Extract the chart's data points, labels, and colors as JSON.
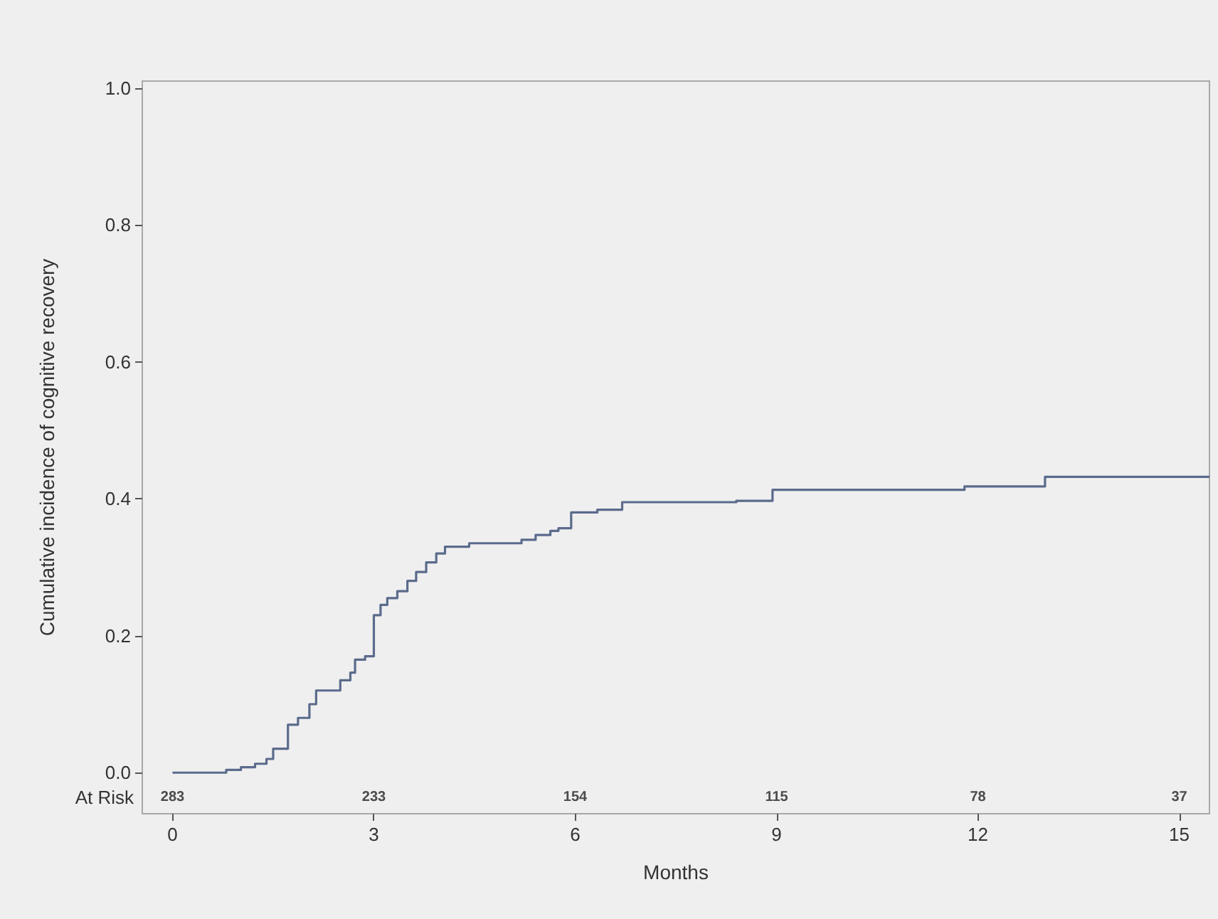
{
  "chart_data": {
    "type": "step",
    "xlabel": "Months",
    "ylabel": "Cumulative incidence of cognitive recovery",
    "xlim": [
      -0.45,
      15.45
    ],
    "xticks": [
      0,
      3,
      6,
      9,
      12,
      15
    ],
    "ylim": [
      -0.06,
      1.01
    ],
    "yticks": [
      {
        "value": 0,
        "label": "0.0"
      },
      {
        "value": 0.2,
        "label": "0.2"
      },
      {
        "value": 0.4,
        "label": "0.4"
      },
      {
        "value": 0.6,
        "label": "0.6"
      },
      {
        "value": 0.8,
        "label": "0.8"
      },
      {
        "value": 1,
        "label": "1.0"
      }
    ],
    "series": [
      {
        "color": "#5b6b8c",
        "x": [
          0,
          0.8,
          1.02,
          1.23,
          1.4,
          1.5,
          1.72,
          1.87,
          2.04,
          2.14,
          2.5,
          2.65,
          2.72,
          2.87,
          3.0,
          3.1,
          3.2,
          3.35,
          3.5,
          3.63,
          3.78,
          3.93,
          4.06,
          4.42,
          5.2,
          5.41,
          5.63,
          5.75,
          5.94,
          6.33,
          6.7,
          8.4,
          8.94,
          11.8,
          13.0,
          15.45
        ],
        "values": [
          0,
          0.004,
          0.008,
          0.013,
          0.02,
          0.035,
          0.07,
          0.08,
          0.1,
          0.12,
          0.135,
          0.146,
          0.165,
          0.17,
          0.23,
          0.245,
          0.255,
          0.265,
          0.28,
          0.293,
          0.307,
          0.32,
          0.33,
          0.335,
          0.34,
          0.347,
          0.353,
          0.357,
          0.38,
          0.384,
          0.395,
          0.397,
          0.413,
          0.418,
          0.432,
          0.432
        ]
      }
    ],
    "annotations": [
      "At Risk",
      "283",
      "233",
      "154",
      "115",
      "78",
      "37"
    ],
    "marker": "none",
    "line_style": "solid",
    "grid": false
  }
}
